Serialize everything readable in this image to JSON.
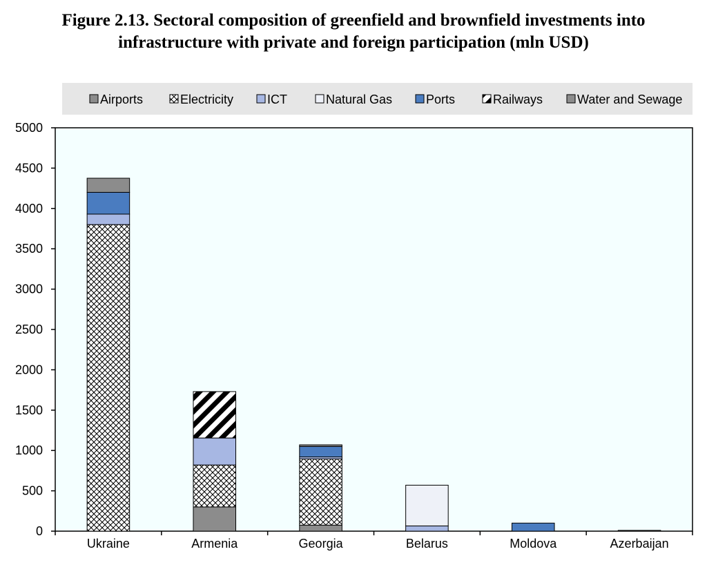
{
  "chart_data": {
    "type": "bar",
    "stacked": true,
    "title_lines": [
      "Figure 2.13. Sectoral composition of greenfield and brownfield investments into",
      "infrastructure with private and foreign participation (mln USD)"
    ],
    "xlabel": "",
    "ylabel": "",
    "categories": [
      "Ukraine",
      "Armenia",
      "Georgia",
      "Belarus",
      "Moldova",
      "Azerbaijan"
    ],
    "ylim": [
      0,
      5000
    ],
    "yticks": [
      0,
      500,
      1000,
      1500,
      2000,
      2500,
      3000,
      3500,
      4000,
      4500,
      5000
    ],
    "grid": false,
    "legend_position": "top",
    "series": [
      {
        "name": "Airports",
        "pattern": "solid",
        "color": "#8c8c8c",
        "values": [
          0,
          300,
          75,
          0,
          0,
          0
        ]
      },
      {
        "name": "Electricity",
        "pattern": "crosshatch",
        "color": "#ffffff",
        "values": [
          3800,
          520,
          820,
          0,
          0,
          0
        ]
      },
      {
        "name": "ICT",
        "pattern": "solid",
        "color": "#a7b7e3",
        "values": [
          130,
          335,
          25,
          65,
          0,
          0
        ]
      },
      {
        "name": "Natural Gas",
        "pattern": "solid",
        "color": "#eef1f8",
        "values": [
          0,
          0,
          0,
          505,
          0,
          0
        ]
      },
      {
        "name": "Ports",
        "pattern": "solid",
        "color": "#4a7cc0",
        "values": [
          270,
          0,
          130,
          0,
          100,
          0
        ]
      },
      {
        "name": "Railways",
        "pattern": "diagonal",
        "color": "#000000",
        "values": [
          0,
          575,
          0,
          0,
          0,
          0
        ]
      },
      {
        "name": "Water and Sewage",
        "pattern": "solid",
        "color": "#8c8c8c",
        "values": [
          175,
          0,
          20,
          0,
          0,
          10
        ]
      }
    ],
    "colors": {
      "plot_background": "#f4ffff",
      "legend_background": "#e6e6e6",
      "bar_outline": "#000000"
    }
  }
}
